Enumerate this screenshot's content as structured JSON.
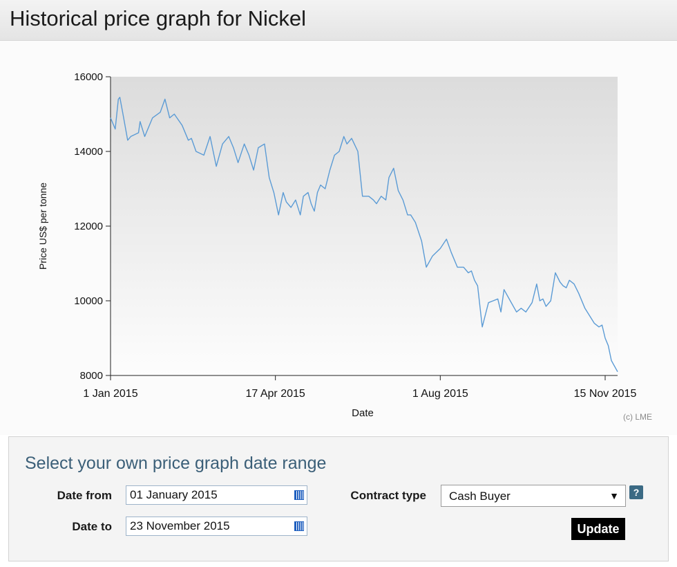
{
  "page": {
    "title": "Historical price graph for Nickel"
  },
  "chart_data": {
    "type": "line",
    "title": "",
    "xlabel": "Date",
    "ylabel": "Price US$ per tonne",
    "ylim": [
      8000,
      16000
    ],
    "xlim": [
      "2015-01-01",
      "2015-11-23"
    ],
    "yticks": [
      8000,
      10000,
      12000,
      14000,
      16000
    ],
    "ytick_labels": [
      "8000",
      "10000",
      "12000",
      "14000",
      "16000"
    ],
    "xtick_labels": [
      "1 Jan 2015",
      "17 Apr 2015",
      "1 Aug 2015",
      "15 Nov 2015"
    ],
    "xtick_dates": [
      "2015-01-01",
      "2015-04-17",
      "2015-08-01",
      "2015-11-15"
    ],
    "grid": false,
    "line_color": "#5b9bd5",
    "series": [
      {
        "name": "",
        "x": [
          "2015-01-01",
          "2015-01-04",
          "2015-01-06",
          "2015-01-07",
          "2015-01-09",
          "2015-01-12",
          "2015-01-14",
          "2015-01-19",
          "2015-01-20",
          "2015-01-23",
          "2015-01-28",
          "2015-02-02",
          "2015-02-05",
          "2015-02-08",
          "2015-02-11",
          "2015-02-16",
          "2015-02-20",
          "2015-02-22",
          "2015-02-25",
          "2015-03-02",
          "2015-03-06",
          "2015-03-10",
          "2015-03-14",
          "2015-03-18",
          "2015-03-21",
          "2015-03-24",
          "2015-03-28",
          "2015-03-31",
          "2015-04-03",
          "2015-04-06",
          "2015-04-10",
          "2015-04-13",
          "2015-04-16",
          "2015-04-19",
          "2015-04-22",
          "2015-04-24",
          "2015-04-27",
          "2015-04-30",
          "2015-05-03",
          "2015-05-05",
          "2015-05-08",
          "2015-05-10",
          "2015-05-12",
          "2015-05-14",
          "2015-05-16",
          "2015-05-19",
          "2015-05-22",
          "2015-05-25",
          "2015-05-28",
          "2015-05-31",
          "2015-06-02",
          "2015-06-05",
          "2015-06-09",
          "2015-06-12",
          "2015-06-16",
          "2015-06-19",
          "2015-06-21",
          "2015-06-24",
          "2015-06-27",
          "2015-06-29",
          "2015-07-02",
          "2015-07-05",
          "2015-07-08",
          "2015-07-11",
          "2015-07-13",
          "2015-07-16",
          "2015-07-20",
          "2015-07-23",
          "2015-07-27",
          "2015-08-01",
          "2015-08-05",
          "2015-08-08",
          "2015-08-12",
          "2015-08-16",
          "2015-08-19",
          "2015-08-21",
          "2015-08-23",
          "2015-08-25",
          "2015-08-28",
          "2015-09-01",
          "2015-09-04",
          "2015-09-07",
          "2015-09-09",
          "2015-09-11",
          "2015-09-15",
          "2015-09-19",
          "2015-09-22",
          "2015-09-25",
          "2015-09-29",
          "2015-10-02",
          "2015-10-04",
          "2015-10-06",
          "2015-10-08",
          "2015-10-11",
          "2015-10-14",
          "2015-10-17",
          "2015-10-19",
          "2015-10-21",
          "2015-10-23",
          "2015-10-26",
          "2015-10-29",
          "2015-11-02",
          "2015-11-05",
          "2015-11-08",
          "2015-11-11",
          "2015-11-13",
          "2015-11-15",
          "2015-11-17",
          "2015-11-19",
          "2015-11-23"
        ],
        "y": [
          14900,
          14600,
          15400,
          15450,
          15000,
          14300,
          14400,
          14500,
          14800,
          14400,
          14900,
          15050,
          15400,
          14900,
          15000,
          14700,
          14300,
          14350,
          14000,
          13900,
          14400,
          13600,
          14200,
          14400,
          14100,
          13700,
          14200,
          13900,
          13500,
          14100,
          14200,
          13300,
          12900,
          12300,
          12900,
          12650,
          12500,
          12700,
          12300,
          12800,
          12900,
          12600,
          12400,
          12900,
          13100,
          13000,
          13500,
          13900,
          14000,
          14400,
          14200,
          14350,
          14000,
          12800,
          12800,
          12700,
          12600,
          12800,
          12700,
          13300,
          13550,
          12950,
          12700,
          12300,
          12300,
          12100,
          11600,
          10900,
          11200,
          11400,
          11650,
          11300,
          10900,
          10900,
          10750,
          10800,
          10550,
          10400,
          9300,
          9950,
          10000,
          10050,
          9700,
          10300,
          10000,
          9700,
          9800,
          9700,
          9950,
          10450,
          10000,
          10050,
          9850,
          10000,
          10750,
          10500,
          10400,
          10350,
          10550,
          10450,
          10200,
          9800,
          9600,
          9400,
          9300,
          9350,
          9000,
          8800,
          8400,
          8100
        ]
      }
    ]
  },
  "copyright": "(c) LME",
  "form": {
    "title": "Select your own price graph date range",
    "date_from_label": "Date from",
    "date_from_value": "01 January 2015",
    "date_to_label": "Date to",
    "date_to_value": "23 November 2015",
    "contract_type_label": "Contract type",
    "contract_type_value": "Cash Buyer",
    "help_label": "?",
    "update_label": "Update",
    "icons": {
      "calendar": "calendar-icon",
      "help": "help-icon",
      "dropdown": "chevron-down-icon"
    }
  }
}
